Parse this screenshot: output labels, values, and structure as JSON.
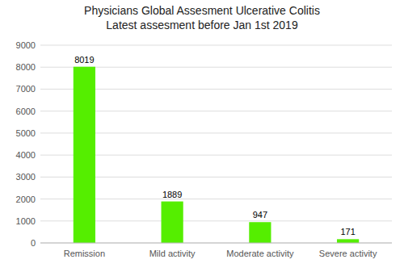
{
  "chart_data": {
    "type": "bar",
    "title": "Physicians Global Assesment Ulcerative Colitis",
    "subtitle": "Latest assesment before Jan 1st 2019",
    "categories": [
      "Remission",
      "Mild activity",
      "Moderate activity",
      "Severe activity"
    ],
    "values": [
      8019,
      1889,
      947,
      171
    ],
    "color": "#55ee00",
    "ylim": [
      0,
      9000
    ],
    "yticks": [
      0,
      1000,
      2000,
      3000,
      4000,
      5000,
      6000,
      7000,
      8000,
      9000
    ],
    "grid": true,
    "data_labels": true
  }
}
